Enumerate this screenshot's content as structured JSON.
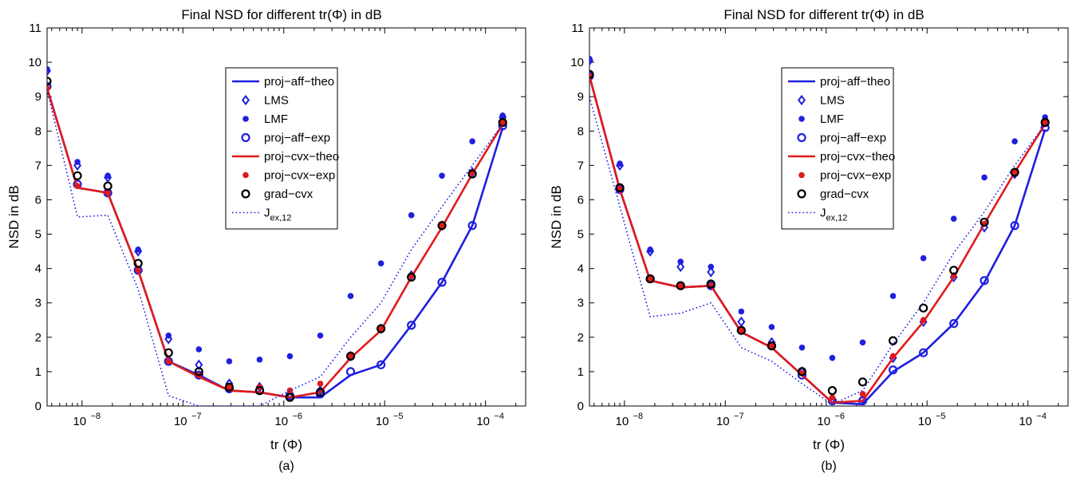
{
  "colors": {
    "blue": "#1f1fe0",
    "red": "#e01a1a",
    "black": "#000000",
    "axis": "#000000"
  },
  "chart_data": [
    {
      "type": "line",
      "panel_label": "(a)",
      "title": "Final NSD for different tr(Φ) in dB",
      "xlabel": "tr (Φ)",
      "ylabel": "NSD in dB",
      "x_scale": "log",
      "xlim": [
        4.5e-09,
        0.00025
      ],
      "ylim": [
        0,
        11
      ],
      "x_ticks": [
        1e-08,
        1e-07,
        1e-06,
        1e-05,
        0.0001
      ],
      "x_tick_labels": [
        [
          "10",
          "−8"
        ],
        [
          "10",
          "−7"
        ],
        [
          "10",
          "−6"
        ],
        [
          "10",
          "−5"
        ],
        [
          "10",
          "−4"
        ]
      ],
      "y_ticks": [
        0,
        1,
        2,
        3,
        4,
        5,
        6,
        7,
        8,
        9,
        10,
        11
      ],
      "legend_position": "top-center",
      "x": [
        4.5e-09,
        9e-09,
        1.8e-08,
        3.6e-08,
        7.2e-08,
        1.44e-07,
        2.88e-07,
        5.76e-07,
        1.15e-06,
        2.3e-06,
        4.6e-06,
        9.2e-06,
        1.84e-05,
        3.7e-05,
        7.4e-05,
        0.000148,
        0.00023
      ],
      "series": [
        {
          "name": "proj−aff−theo",
          "style": "line",
          "color": "blue",
          "values": [
            9.25,
            6.35,
            6.2,
            3.95,
            1.3,
            0.9,
            0.45,
            0.4,
            0.25,
            0.25,
            0.9,
            1.2,
            2.35,
            3.6,
            5.25,
            8.1,
            null
          ]
        },
        {
          "name": "LMS",
          "style": "diamond",
          "color": "blue",
          "values": [
            9.75,
            7.0,
            6.65,
            4.5,
            1.95,
            1.2,
            0.65,
            0.55,
            0.35,
            0.45,
            1.45,
            2.25,
            3.8,
            5.25,
            6.8,
            8.4,
            null
          ]
        },
        {
          "name": "LMF",
          "style": "dot",
          "color": "blue",
          "values": [
            9.8,
            7.1,
            6.7,
            4.55,
            2.05,
            1.65,
            1.3,
            1.35,
            1.45,
            2.05,
            3.2,
            4.15,
            5.55,
            6.7,
            7.7,
            8.45,
            null
          ]
        },
        {
          "name": "proj−aff−exp",
          "style": "circle",
          "color": "blue",
          "values": [
            9.3,
            6.45,
            6.2,
            3.95,
            1.3,
            0.9,
            0.5,
            0.45,
            0.3,
            0.35,
            1.0,
            1.2,
            2.35,
            3.6,
            5.25,
            8.15,
            null
          ]
        },
        {
          "name": "proj−cvx−theo",
          "style": "line",
          "color": "red",
          "values": [
            9.25,
            6.35,
            6.2,
            3.95,
            1.3,
            0.85,
            0.45,
            0.4,
            0.25,
            0.4,
            1.4,
            2.2,
            3.75,
            5.2,
            6.75,
            8.2,
            null
          ]
        },
        {
          "name": "proj−cvx−exp",
          "style": "dot",
          "color": "red",
          "values": [
            9.25,
            6.4,
            6.2,
            3.95,
            1.3,
            0.9,
            0.55,
            0.55,
            0.45,
            0.65,
            1.45,
            2.25,
            3.8,
            5.25,
            6.8,
            8.25,
            null
          ]
        },
        {
          "name": "grad−cvx",
          "style": "circle",
          "color": "black",
          "values": [
            9.45,
            6.7,
            6.4,
            4.15,
            1.55,
            1.0,
            0.55,
            0.45,
            0.25,
            0.4,
            1.45,
            2.25,
            3.75,
            5.25,
            6.75,
            8.25,
            null
          ]
        },
        {
          "name": "J_ex,12",
          "style": "dotted",
          "color": "blue",
          "values": [
            9.2,
            5.5,
            5.55,
            3.4,
            0.3,
            0.0,
            0.0,
            0.0,
            0.45,
            0.85,
            2.0,
            3.0,
            4.55,
            5.8,
            7.0,
            8.2,
            null
          ]
        }
      ]
    },
    {
      "type": "line",
      "panel_label": "(b)",
      "title": "Final NSD for different tr(Φ) in dB",
      "xlabel": "tr (Φ)",
      "ylabel": "NSD in dB",
      "x_scale": "log",
      "xlim": [
        4.5e-09,
        0.00025
      ],
      "ylim": [
        0,
        11
      ],
      "x_ticks": [
        1e-08,
        1e-07,
        1e-06,
        1e-05,
        0.0001
      ],
      "x_tick_labels": [
        [
          "10",
          "−8"
        ],
        [
          "10",
          "−7"
        ],
        [
          "10",
          "−6"
        ],
        [
          "10",
          "−5"
        ],
        [
          "10",
          "−4"
        ]
      ],
      "y_ticks": [
        0,
        1,
        2,
        3,
        4,
        5,
        6,
        7,
        8,
        9,
        10,
        11
      ],
      "legend_position": "top-center",
      "x": [
        4.5e-09,
        9e-09,
        1.8e-08,
        3.6e-08,
        7.2e-08,
        1.44e-07,
        2.88e-07,
        5.76e-07,
        1.15e-06,
        2.3e-06,
        4.6e-06,
        9.2e-06,
        1.84e-05,
        3.7e-05,
        7.4e-05,
        0.000148,
        0.00023
      ],
      "series": [
        {
          "name": "proj−aff−theo",
          "style": "line",
          "color": "blue",
          "values": [
            9.6,
            6.3,
            3.65,
            3.45,
            3.5,
            2.15,
            1.7,
            0.9,
            0.1,
            0.05,
            1.0,
            1.55,
            2.4,
            3.6,
            5.25,
            8.05,
            null
          ]
        },
        {
          "name": "LMS",
          "style": "diamond",
          "color": "blue",
          "values": [
            10.05,
            7.0,
            4.5,
            4.05,
            3.9,
            2.45,
            1.85,
            1.0,
            0.2,
            0.2,
            1.4,
            2.45,
            3.75,
            5.2,
            6.75,
            8.3,
            null
          ]
        },
        {
          "name": "LMF",
          "style": "dot",
          "color": "blue",
          "values": [
            10.1,
            7.05,
            4.55,
            4.2,
            4.05,
            2.75,
            2.3,
            1.7,
            1.4,
            1.85,
            3.2,
            4.3,
            5.45,
            6.65,
            7.7,
            8.4,
            null
          ]
        },
        {
          "name": "proj−aff−exp",
          "style": "circle",
          "color": "blue",
          "values": [
            9.6,
            6.3,
            3.7,
            3.5,
            3.5,
            2.2,
            1.75,
            0.9,
            0.15,
            0.15,
            1.05,
            1.55,
            2.4,
            3.65,
            5.25,
            8.1,
            null
          ]
        },
        {
          "name": "proj−cvx−theo",
          "style": "line",
          "color": "red",
          "values": [
            9.6,
            6.3,
            3.65,
            3.45,
            3.5,
            2.15,
            1.7,
            0.9,
            0.1,
            0.15,
            1.4,
            2.45,
            3.75,
            5.3,
            6.8,
            8.2,
            null
          ]
        },
        {
          "name": "proj−cvx−exp",
          "style": "dot",
          "color": "red",
          "values": [
            9.6,
            6.3,
            3.7,
            3.5,
            3.5,
            2.2,
            1.75,
            0.95,
            0.25,
            0.35,
            1.45,
            2.5,
            3.8,
            5.3,
            6.8,
            8.25,
            null
          ]
        },
        {
          "name": "grad−cvx",
          "style": "circle",
          "color": "black",
          "values": [
            9.65,
            6.35,
            3.7,
            3.5,
            3.55,
            2.2,
            1.75,
            1.0,
            0.45,
            0.7,
            1.9,
            2.85,
            3.95,
            5.35,
            6.8,
            8.25,
            null
          ]
        },
        {
          "name": "J_ex,12",
          "style": "dotted",
          "color": "blue",
          "values": [
            9.0,
            5.8,
            2.6,
            2.7,
            3.0,
            1.7,
            1.3,
            0.65,
            0.05,
            0.45,
            1.8,
            3.0,
            4.45,
            5.65,
            7.0,
            8.2,
            null
          ]
        }
      ]
    }
  ]
}
